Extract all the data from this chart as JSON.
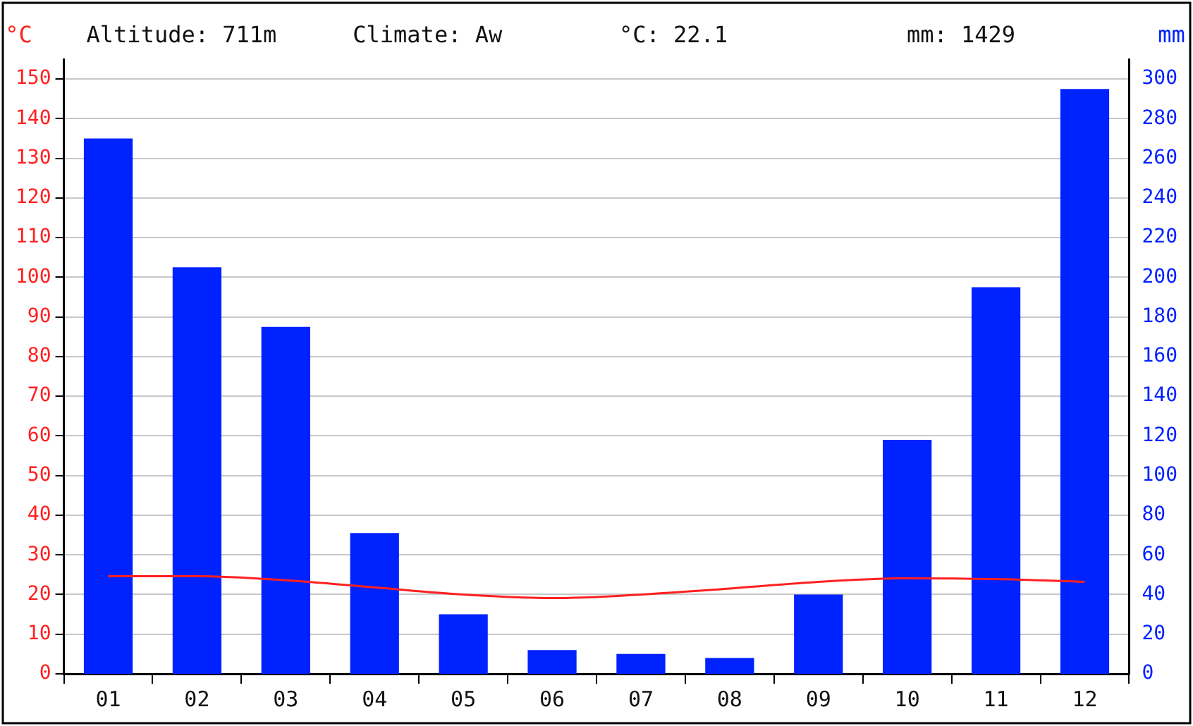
{
  "chart_data": {
    "type": "bar",
    "annotations": [
      "Altitude: 711m",
      "Climate: Aw",
      "°C: 22.1",
      "mm: 1429"
    ],
    "ylabel": "°C",
    "y2label": "mm",
    "categories": [
      "01",
      "02",
      "03",
      "04",
      "05",
      "06",
      "07",
      "08",
      "09",
      "10",
      "11",
      "12"
    ],
    "series": [
      {
        "axis": "y2",
        "color": "#0022ff",
        "values": [
          270,
          205,
          175,
          71,
          30,
          12,
          10,
          8,
          40,
          118,
          195,
          295
        ]
      },
      {
        "type": "line",
        "axis": "y",
        "color": "#ff2020",
        "marker": "none",
        "values": [
          24.6,
          24.6,
          23.6,
          21.8,
          20,
          19.1,
          20,
          21.5,
          23.2,
          24.1,
          23.9,
          23.2
        ]
      }
    ],
    "ylim": [
      0,
      155
    ],
    "yticks": [
      0,
      10,
      20,
      30,
      40,
      50,
      60,
      70,
      80,
      90,
      100,
      110,
      120,
      130,
      140,
      150
    ],
    "y2lim": [
      0,
      310
    ],
    "y2ticks": [
      0,
      20,
      40,
      60,
      80,
      100,
      120,
      140,
      160,
      180,
      200,
      220,
      240,
      260,
      280,
      300
    ],
    "grid": "y",
    "legend": false
  }
}
